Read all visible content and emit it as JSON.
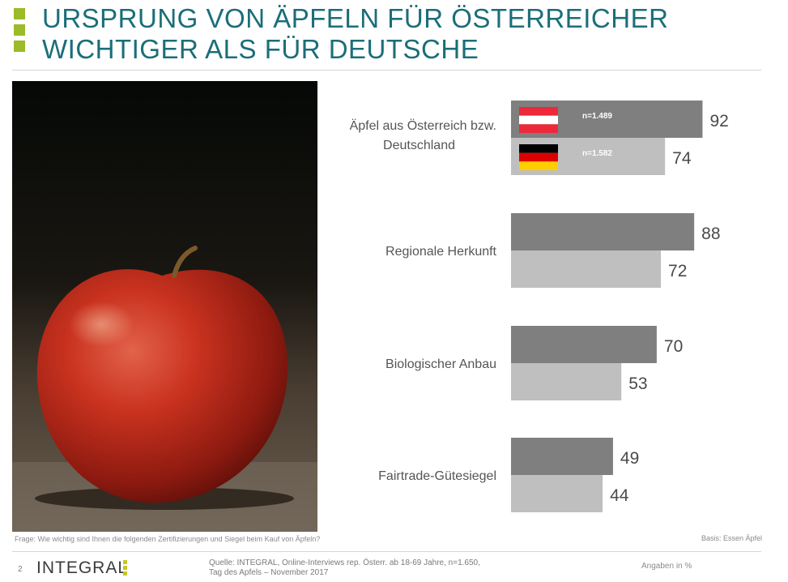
{
  "title_line1": "URSPRUNG VON ÄPFELN FÜR ÖSTERREICHER",
  "title_line2": "WICHTIGER ALS FÜR DEUTSCHE",
  "chart_data": {
    "type": "bar",
    "orientation": "horizontal",
    "categories": [
      "Äpfel aus Österreich bzw. Deutschland",
      "Regionale Herkunft",
      "Biologischer Anbau",
      "Fairtrade-Gütesiegel"
    ],
    "series": [
      {
        "name": "n=1.489",
        "color": "#7f7f7f",
        "flag": "austria",
        "values": [
          92,
          88,
          70,
          49
        ]
      },
      {
        "name": "n=1.582",
        "color": "#bfbfbf",
        "flag": "germany",
        "values": [
          74,
          72,
          53,
          44
        ]
      }
    ],
    "xlim": [
      0,
      100
    ],
    "legend": "inside-first-category-bars"
  },
  "footnote": {
    "question_label": "Frage:",
    "question": " Wie wichtig sind Ihnen die folgenden Zertifizierungen und Siegel beim Kauf von Äpfeln?",
    "basis": "Basis: Essen Äpfel"
  },
  "footer": {
    "page": "2",
    "logo": "INTEGRAL",
    "source_line1": "Quelle: INTEGRAL, Online-Interviews rep. Österr.  ab 18-69 Jahre, n=1.650,",
    "source_line2": "Tag des Apfels – November 2017",
    "units": "Angaben in %"
  }
}
